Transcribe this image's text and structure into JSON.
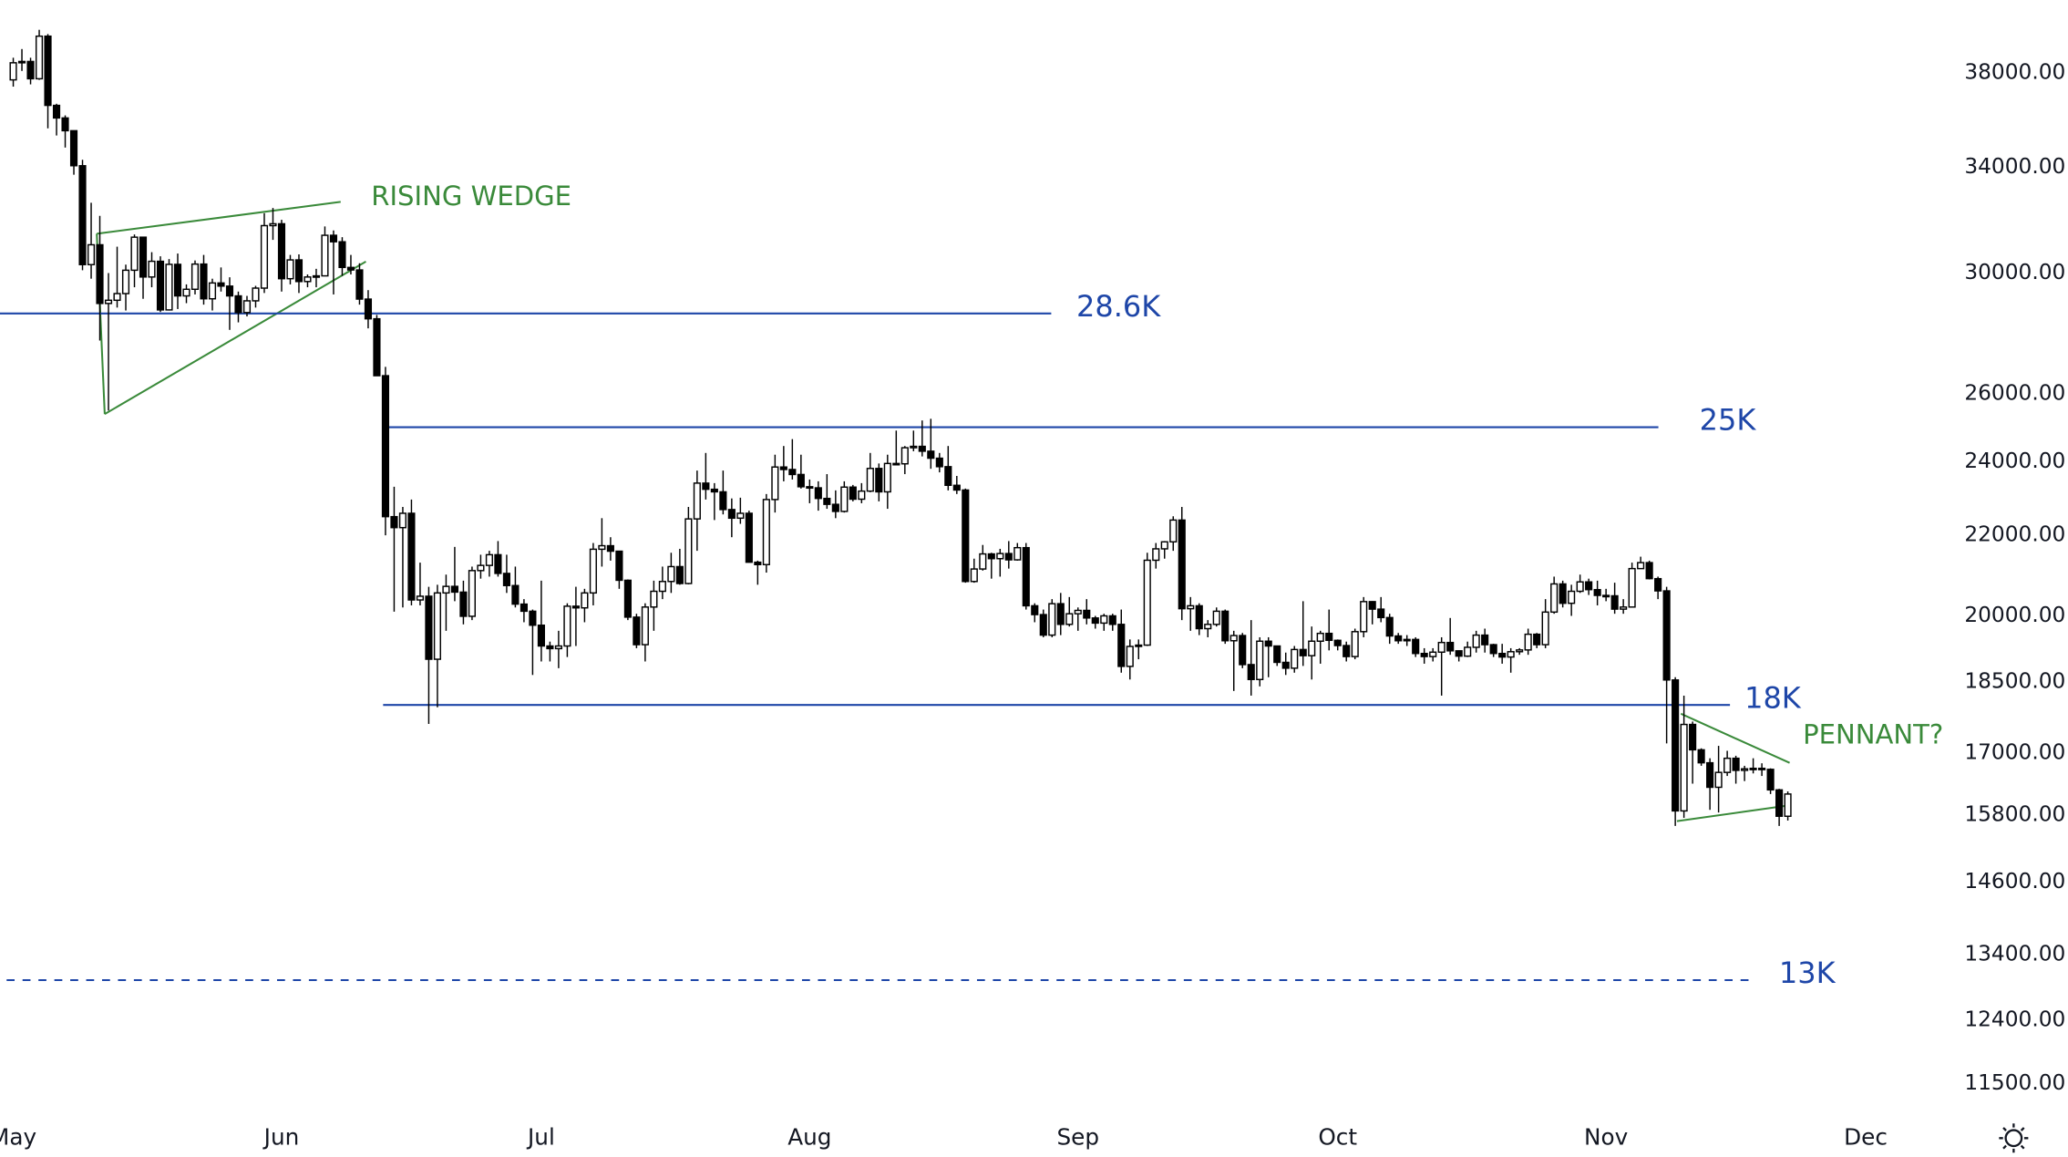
{
  "chart_data": {
    "type": "candlestick",
    "log_scale": true,
    "grid": false,
    "up_color": "#ffffff",
    "down_color": "#000000",
    "wick_color": "#000000",
    "level_color": "#1e46a8",
    "note_color": "#3a8a3a",
    "categories": [
      "May",
      null,
      null,
      null,
      null,
      null,
      null,
      null,
      null,
      null,
      null,
      null,
      null,
      null,
      null,
      null,
      null,
      null,
      null,
      null,
      null,
      null,
      null,
      null,
      null,
      null,
      null,
      null,
      null,
      null,
      null,
      "Jun",
      null,
      null,
      null,
      null,
      null,
      null,
      null,
      null,
      null,
      null,
      null,
      null,
      null,
      null,
      null,
      null,
      null,
      null,
      null,
      null,
      null,
      null,
      null,
      null,
      null,
      null,
      null,
      null,
      null,
      "Jul",
      null,
      null,
      null,
      null,
      null,
      null,
      null,
      null,
      null,
      null,
      null,
      null,
      null,
      null,
      null,
      null,
      null,
      null,
      null,
      null,
      null,
      null,
      null,
      null,
      null,
      null,
      null,
      null,
      null,
      null,
      "Aug",
      null,
      null,
      null,
      null,
      null,
      null,
      null,
      null,
      null,
      null,
      null,
      null,
      null,
      null,
      null,
      null,
      null,
      null,
      null,
      null,
      null,
      null,
      null,
      null,
      null,
      null,
      null,
      null,
      null,
      null,
      "Sep",
      null,
      null,
      null,
      null,
      null,
      null,
      null,
      null,
      null,
      null,
      null,
      null,
      null,
      null,
      null,
      null,
      null,
      null,
      null,
      null,
      null,
      null,
      null,
      null,
      null,
      null,
      null,
      null,
      null,
      "Oct",
      null,
      null,
      null,
      null,
      null,
      null,
      null,
      null,
      null,
      null,
      null,
      null,
      null,
      null,
      null,
      null,
      null,
      null,
      null,
      null,
      null,
      null,
      null,
      null,
      null,
      null,
      null,
      null,
      null,
      null,
      "Nov",
      null,
      null,
      null,
      null,
      null,
      null,
      null,
      null,
      null,
      null,
      null,
      null,
      null,
      null,
      null,
      null,
      null,
      null,
      null,
      null,
      null,
      null,
      null,
      null,
      null,
      null,
      null,
      null,
      null,
      "Dec"
    ],
    "open": [
      37700,
      38470,
      38530,
      37750,
      39700,
      36580,
      36040,
      35500,
      34060,
      30300,
      31020,
      28940,
      29050,
      29280,
      30100,
      31300,
      29860,
      30420,
      28720,
      30310,
      29200,
      29430,
      30320,
      29100,
      29650,
      29540,
      29200,
      28630,
      29030,
      29470,
      31730,
      31800,
      29800,
      30470,
      29700,
      29860,
      29900,
      31370,
      31130,
      30200,
      30110,
      29090,
      28420,
      26570,
      22490,
      22200,
      22580,
      20380,
      20470,
      19000,
      20550,
      20710,
      20570,
      19990,
      21100,
      21230,
      21500,
      21030,
      20730,
      20280,
      20110,
      19780,
      19300,
      19240,
      19300,
      20230,
      20190,
      20550,
      21640,
      21730,
      21590,
      20860,
      19970,
      19330,
      20210,
      20590,
      20830,
      21200,
      20780,
      22430,
      23400,
      23230,
      23160,
      22680,
      22450,
      22580,
      21310,
      21250,
      22950,
      23850,
      23780,
      23640,
      23300,
      23270,
      22980,
      22820,
      22630,
      23290,
      22960,
      23180,
      23810,
      23160,
      23950,
      23940,
      24400,
      24440,
      24300,
      24100,
      23860,
      23340,
      23210,
      20830,
      21140,
      21520,
      21400,
      21530,
      21370,
      21680,
      20240,
      20030,
      19550,
      20290,
      19800,
      20050,
      20130,
      19950,
      19830,
      20000,
      19800,
      18840,
      19290,
      19320,
      21360,
      21650,
      21830,
      22400,
      20170,
      20240,
      19700,
      19800,
      20110,
      19420,
      19540,
      18880,
      18550,
      19410,
      19300,
      18930,
      18800,
      19220,
      19080,
      19410,
      19590,
      19430,
      19310,
      19060,
      19630,
      20340,
      20160,
      19960,
      19530,
      19420,
      19450,
      19130,
      19060,
      19160,
      19380,
      19190,
      19070,
      19270,
      19550,
      19330,
      19130,
      19050,
      19170,
      19210,
      19570,
      19330,
      20090,
      20770,
      20300,
      20590,
      20820,
      20630,
      20490,
      20480,
      20160,
      20210,
      21150,
      21300,
      20900,
      20600,
      18540,
      15880,
      17590,
      17070,
      16810,
      16330,
      16620,
      16900,
      16660,
      16690,
      16700,
      16680,
      16280,
      15780,
      null,
      null,
      null,
      null,
      null,
      null,
      null,
      null,
      null
    ],
    "high": [
      38700,
      39100,
      38700,
      40000,
      39800,
      36650,
      36150,
      35500,
      34300,
      32600,
      32100,
      30000,
      30950,
      30300,
      31400,
      31300,
      30750,
      30600,
      30500,
      30700,
      29600,
      30450,
      30650,
      29800,
      30200,
      29850,
      29350,
      29200,
      29550,
      32200,
      32400,
      31950,
      30650,
      30670,
      29950,
      30150,
      31700,
      31550,
      31300,
      30650,
      30350,
      29400,
      28550,
      26850,
      23300,
      22750,
      22950,
      21300,
      20700,
      20750,
      21000,
      21700,
      20850,
      21200,
      21500,
      21600,
      21850,
      21500,
      21200,
      20400,
      20150,
      20850,
      19400,
      19650,
      20300,
      20700,
      20650,
      21800,
      22450,
      21950,
      21600,
      20880,
      20050,
      20300,
      20850,
      21200,
      21550,
      21650,
      22750,
      23750,
      24250,
      23400,
      23750,
      22980,
      23000,
      22650,
      21350,
      23100,
      24200,
      24450,
      24650,
      24200,
      23500,
      23450,
      23650,
      23200,
      23450,
      23350,
      23400,
      24250,
      23950,
      24200,
      24900,
      24450,
      24900,
      25200,
      25250,
      24250,
      24450,
      23600,
      23250,
      21400,
      21750,
      21550,
      21650,
      21850,
      21800,
      21800,
      20300,
      20150,
      20400,
      20550,
      20450,
      20200,
      20400,
      20000,
      20050,
      20050,
      20150,
      19450,
      19450,
      21550,
      21800,
      21850,
      22500,
      22750,
      20450,
      20300,
      19900,
      20200,
      20150,
      19650,
      19600,
      19900,
      19500,
      19500,
      19300,
      19150,
      19300,
      20350,
      19750,
      19650,
      20150,
      19450,
      19400,
      19700,
      20450,
      20350,
      20450,
      20050,
      19600,
      19550,
      19500,
      19250,
      19250,
      19500,
      19950,
      19200,
      19400,
      19650,
      19700,
      19350,
      19350,
      19250,
      19250,
      19700,
      19600,
      20400,
      20950,
      20850,
      20750,
      21000,
      20900,
      20850,
      20650,
      20800,
      20400,
      21300,
      21450,
      21350,
      20950,
      20700,
      18600,
      18200,
      17650,
      17100,
      16900,
      17150,
      17050,
      16950,
      16750,
      16900,
      16800,
      16700,
      16300,
      16250,
      null,
      null,
      null,
      null,
      null,
      null,
      null,
      null,
      null
    ],
    "low": [
      37400,
      38100,
      37500,
      37700,
      35600,
      35300,
      34800,
      33700,
      30100,
      29800,
      27700,
      25500,
      28800,
      28700,
      29500,
      29100,
      29500,
      28650,
      28700,
      28750,
      28950,
      29250,
      28900,
      28700,
      29350,
      28050,
      28300,
      28500,
      28800,
      29300,
      31200,
      29350,
      29600,
      29300,
      29500,
      29500,
      29900,
      29250,
      29900,
      29950,
      28900,
      28100,
      26560,
      22000,
      20100,
      20200,
      20250,
      20250,
      17600,
      17950,
      19650,
      20350,
      19800,
      19900,
      20900,
      20950,
      20950,
      20550,
      20200,
      19850,
      18650,
      18950,
      18950,
      18800,
      19050,
      19300,
      19850,
      20250,
      21200,
      21350,
      20650,
      19900,
      19250,
      18950,
      19650,
      20400,
      20550,
      20750,
      20760,
      21600,
      22950,
      22400,
      22550,
      21950,
      22300,
      21300,
      20750,
      21050,
      22600,
      23450,
      23500,
      23250,
      22850,
      22650,
      22700,
      22450,
      22600,
      22900,
      22850,
      23150,
      22900,
      22700,
      23900,
      23650,
      24300,
      24150,
      23800,
      23700,
      23200,
      23100,
      20800,
      20800,
      21100,
      20900,
      20950,
      21150,
      21350,
      20150,
      19850,
      19500,
      19500,
      19550,
      19750,
      19650,
      19800,
      19700,
      19650,
      19650,
      18700,
      18550,
      19000,
      19300,
      21150,
      21400,
      21600,
      19900,
      19650,
      19550,
      19500,
      19750,
      19350,
      18300,
      18800,
      18200,
      18400,
      18600,
      18850,
      18650,
      18700,
      18850,
      18550,
      18900,
      19200,
      19200,
      18950,
      19000,
      19500,
      19800,
      19850,
      19350,
      19350,
      19300,
      19050,
      18900,
      18950,
      18200,
      19100,
      18950,
      19050,
      19150,
      19150,
      19050,
      18900,
      18700,
      19100,
      19100,
      19250,
      19250,
      20050,
      20200,
      20000,
      20550,
      20500,
      20250,
      20350,
      20050,
      20050,
      20200,
      21150,
      20880,
      20400,
      17200,
      15600,
      15750,
      16400,
      16750,
      15900,
      15850,
      16550,
      16400,
      16450,
      16600,
      16550,
      16200,
      15600,
      15700,
      null,
      null,
      null,
      null,
      null,
      null,
      null,
      null,
      null
    ],
    "close": [
      38470,
      38530,
      37750,
      39700,
      36580,
      36040,
      35500,
      34060,
      30300,
      31020,
      28940,
      29050,
      29280,
      30100,
      31300,
      29860,
      30420,
      28720,
      30310,
      29200,
      29430,
      30320,
      29100,
      29650,
      29540,
      29200,
      28630,
      29030,
      29470,
      31730,
      31800,
      29800,
      30470,
      29700,
      29860,
      29900,
      31370,
      31130,
      30200,
      30110,
      29090,
      28420,
      26570,
      22490,
      22200,
      22580,
      20380,
      20470,
      19000,
      20550,
      20710,
      20570,
      19990,
      21100,
      21230,
      21500,
      21030,
      20730,
      20280,
      20110,
      19780,
      19300,
      19240,
      19300,
      20230,
      20190,
      20550,
      21640,
      21730,
      21590,
      20860,
      19970,
      19330,
      20210,
      20590,
      20830,
      21200,
      20780,
      22430,
      23400,
      23230,
      23160,
      22680,
      22450,
      22580,
      21310,
      21250,
      22950,
      23850,
      23780,
      23640,
      23300,
      23270,
      22980,
      22820,
      22630,
      23290,
      22960,
      23180,
      23810,
      23160,
      23950,
      23940,
      24400,
      24440,
      24300,
      24100,
      23860,
      23340,
      23210,
      20830,
      21140,
      21520,
      21400,
      21530,
      21370,
      21680,
      20240,
      20030,
      19550,
      20290,
      19800,
      20050,
      20130,
      19950,
      19830,
      20000,
      19800,
      18840,
      19290,
      19320,
      21360,
      21650,
      21830,
      22400,
      20170,
      20240,
      19700,
      19800,
      20110,
      19420,
      19540,
      18880,
      18550,
      19410,
      19300,
      18930,
      18800,
      19220,
      19080,
      19410,
      19590,
      19430,
      19310,
      19060,
      19630,
      20340,
      20160,
      19960,
      19530,
      19420,
      19450,
      19130,
      19060,
      19160,
      19380,
      19190,
      19070,
      19270,
      19550,
      19330,
      19130,
      19050,
      19170,
      19210,
      19570,
      19330,
      20090,
      20770,
      20300,
      20590,
      20820,
      20630,
      20490,
      20480,
      20160,
      20210,
      21150,
      21300,
      20900,
      20600,
      18540,
      15880,
      17590,
      17070,
      16810,
      16330,
      16620,
      16900,
      16660,
      16690,
      16700,
      16680,
      16280,
      15780,
      16200,
      null,
      null,
      null,
      null,
      null,
      null,
      null,
      null,
      null
    ],
    "ylim": [
      11180,
      41420
    ],
    "yticks": [
      {
        "value": 38000,
        "label": "38000.00"
      },
      {
        "value": 34000,
        "label": "34000.00"
      },
      {
        "value": 30000,
        "label": "30000.00"
      },
      {
        "value": 26000,
        "label": "26000.00"
      },
      {
        "value": 24000,
        "label": "24000.00"
      },
      {
        "value": 22000,
        "label": "22000.00"
      },
      {
        "value": 20000,
        "label": "20000.00"
      },
      {
        "value": 18500,
        "label": "18500.00"
      },
      {
        "value": 17000,
        "label": "17000.00"
      },
      {
        "value": 15800,
        "label": "15800.00"
      },
      {
        "value": 14600,
        "label": "14600.00"
      },
      {
        "value": 13400,
        "label": "13400.00"
      },
      {
        "value": 12400,
        "label": "12400.00"
      },
      {
        "value": 11500,
        "label": "11500.00"
      }
    ],
    "levels": [
      {
        "label": "28.6K",
        "value": 28600,
        "dashed": false
      },
      {
        "label": "25K",
        "value": 25000,
        "dashed": false
      },
      {
        "label": "18K",
        "value": 18000,
        "dashed": false
      },
      {
        "label": "13K",
        "value": 13000,
        "dashed": true
      }
    ],
    "annotations": [
      {
        "text": "RISING WEDGE"
      },
      {
        "text": "PENNANT?"
      }
    ]
  }
}
